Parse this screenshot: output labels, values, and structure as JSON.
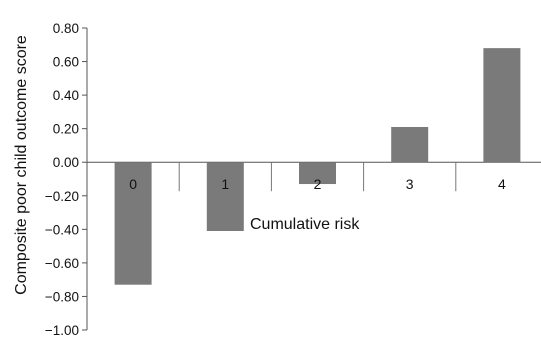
{
  "chart_data": {
    "type": "bar",
    "title": "",
    "xlabel": "Cumulative risk",
    "ylabel": "Composite poor child outcome score",
    "categories": [
      "0",
      "1",
      "2",
      "3",
      "4"
    ],
    "values": [
      -0.73,
      -0.41,
      -0.13,
      0.21,
      0.68
    ],
    "ylim": [
      -1.0,
      0.8
    ],
    "yticks": [
      0.8,
      0.6,
      0.4,
      0.2,
      0.0,
      -0.2,
      -0.4,
      -0.6,
      -0.8,
      -1.0
    ],
    "ytick_labels": [
      "0.80",
      "0.60",
      "0.40",
      "0.20",
      "0.00",
      "−0.20",
      "−0.40",
      "−0.60",
      "−0.80",
      "−1.00"
    ],
    "grid": false,
    "legend": "none",
    "bar_color": "#7a7a7a"
  }
}
